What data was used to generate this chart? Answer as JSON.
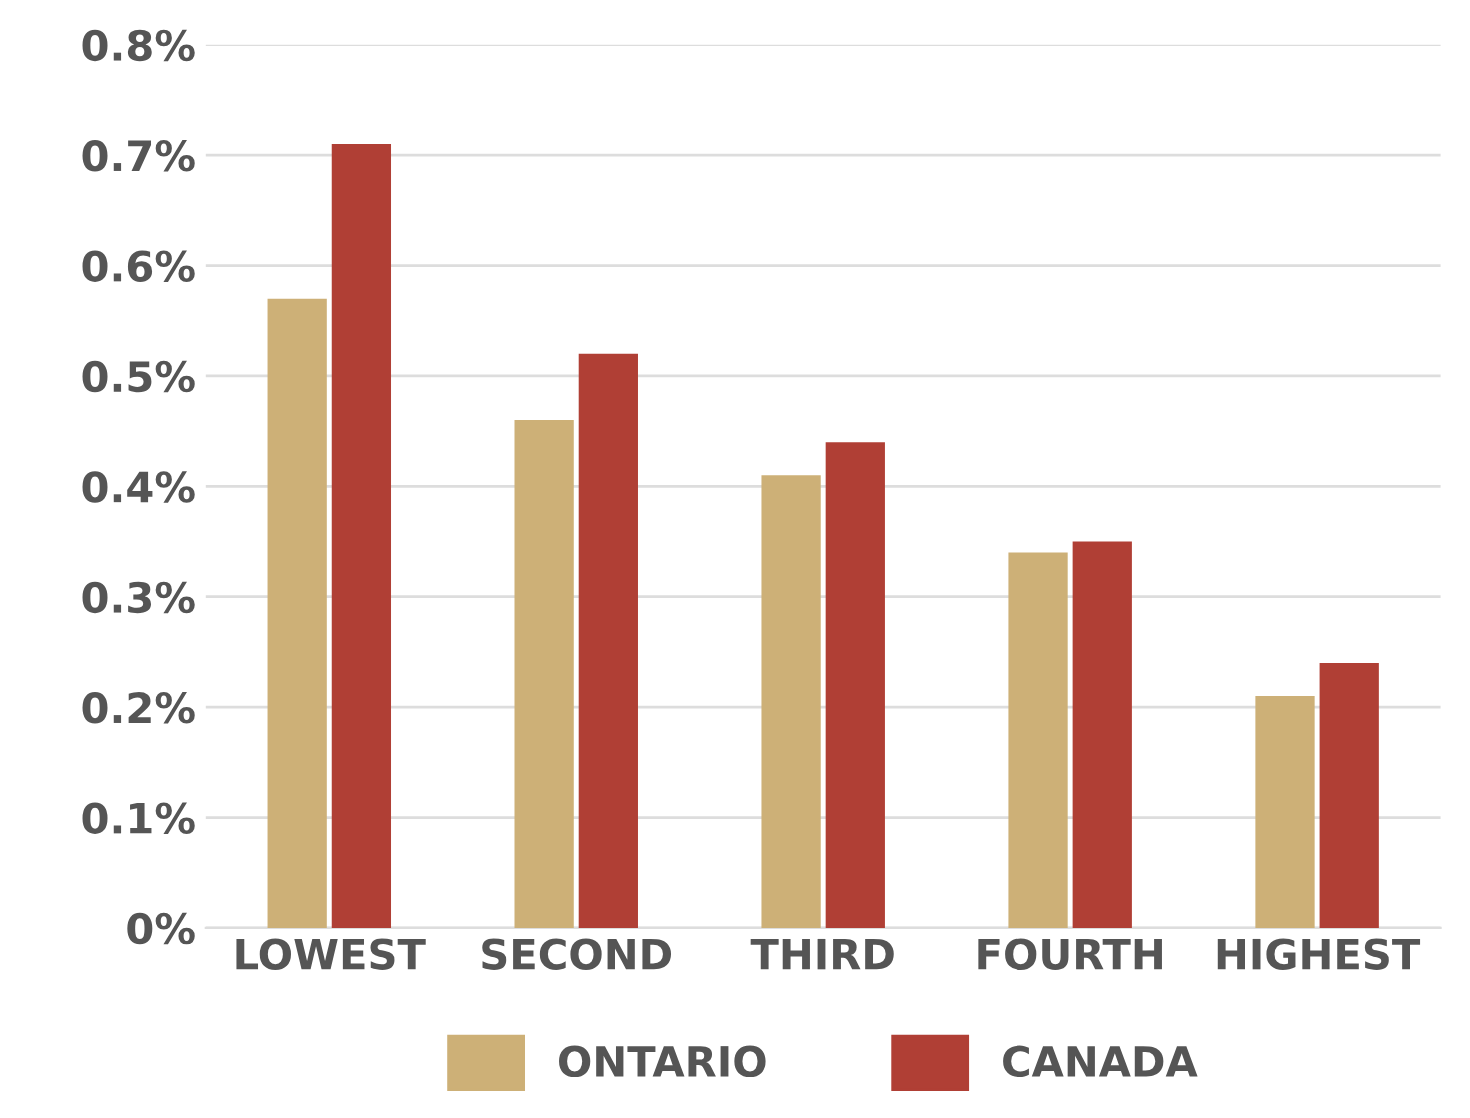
{
  "chart_data": {
    "type": "bar",
    "categories": [
      "LOWEST",
      "SECOND",
      "THIRD",
      "FOURTH",
      "HIGHEST"
    ],
    "series": [
      {
        "name": "ONTARIO",
        "color": "#cdb077",
        "values": [
          0.57,
          0.46,
          0.41,
          0.34,
          0.21
        ]
      },
      {
        "name": "CANADA",
        "color": "#b03f35",
        "values": [
          0.71,
          0.52,
          0.44,
          0.35,
          0.24
        ]
      }
    ],
    "ylim": [
      0,
      0.8
    ],
    "yticks": [
      {
        "value": 0,
        "label": "0%"
      },
      {
        "value": 0.1,
        "label": "0.1%"
      },
      {
        "value": 0.2,
        "label": "0.2%"
      },
      {
        "value": 0.3,
        "label": "0.3%"
      },
      {
        "value": 0.4,
        "label": "0.4%"
      },
      {
        "value": 0.5,
        "label": "0.5%"
      },
      {
        "value": 0.6,
        "label": "0.6%"
      },
      {
        "value": 0.7,
        "label": "0.7%"
      },
      {
        "value": 0.8,
        "label": "0.8%"
      }
    ],
    "grid": "y",
    "legend": "bottom"
  }
}
